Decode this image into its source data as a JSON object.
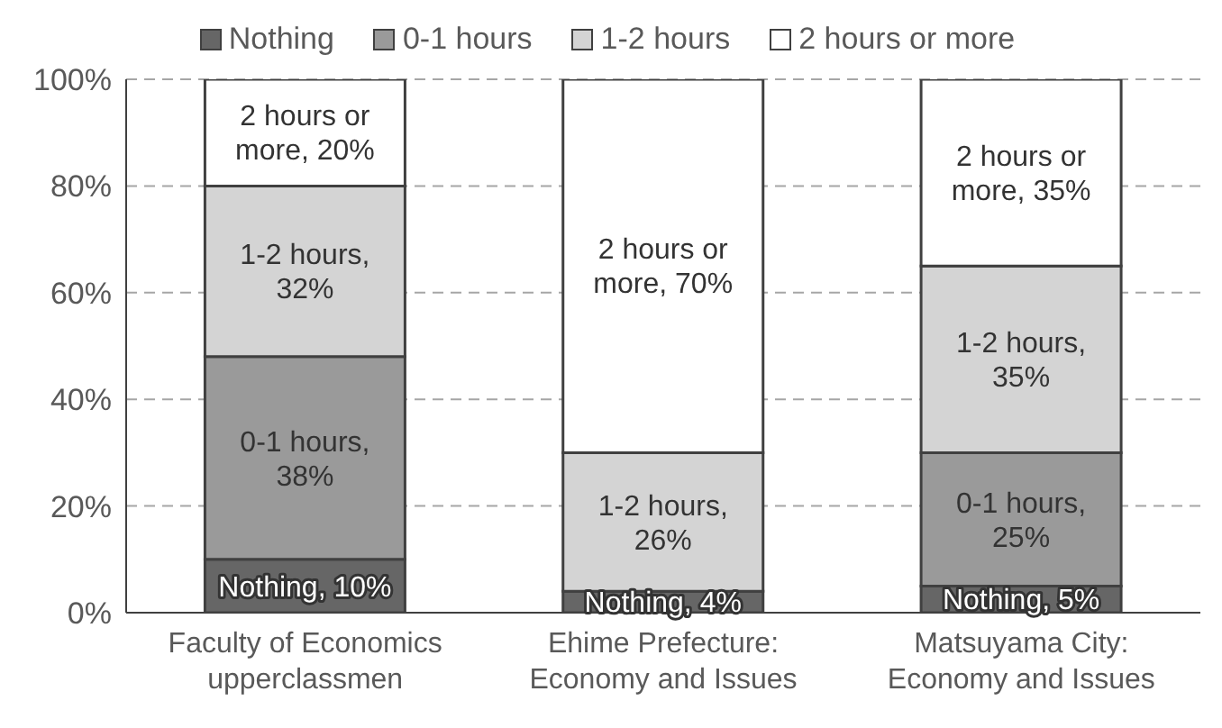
{
  "chart_data": {
    "type": "bar",
    "stacked": true,
    "categories": [
      "Faculty of Economics upperclassmen",
      "Ehime Prefecture: Economy and Issues",
      "Matsuyama City: Economy and Issues"
    ],
    "series": [
      {
        "name": "Nothing",
        "color": "#666666",
        "values": [
          10,
          4,
          5
        ],
        "value_labels": [
          "Nothing, 10%",
          "Nothing, 4%",
          "Nothing, 5%"
        ]
      },
      {
        "name": "0-1 hours",
        "color": "#9a9a9a",
        "values": [
          38,
          0,
          25
        ],
        "value_labels": [
          "0-1 hours, 38%",
          null,
          "0-1 hours, 25%"
        ]
      },
      {
        "name": "1-2 hours",
        "color": "#d4d4d4",
        "values": [
          32,
          26,
          35
        ],
        "value_labels": [
          "1-2 hours, 32%",
          "1-2 hours, 26%",
          "1-2 hours, 35%"
        ]
      },
      {
        "name": "2 hours or more",
        "color": "#ffffff",
        "values": [
          20,
          70,
          35
        ],
        "value_labels": [
          "2 hours or more, 20%",
          "2 hours or more, 70%",
          "2 hours or more, 35%"
        ]
      }
    ],
    "ylim": [
      0,
      100
    ],
    "yticks": [
      {
        "value": 0,
        "label": "0%"
      },
      {
        "value": 20,
        "label": "20%"
      },
      {
        "value": 40,
        "label": "40%"
      },
      {
        "value": 60,
        "label": "60%"
      },
      {
        "value": 80,
        "label": "80%"
      },
      {
        "value": 100,
        "label": "100%"
      }
    ],
    "grid": "y",
    "legend": "top"
  }
}
